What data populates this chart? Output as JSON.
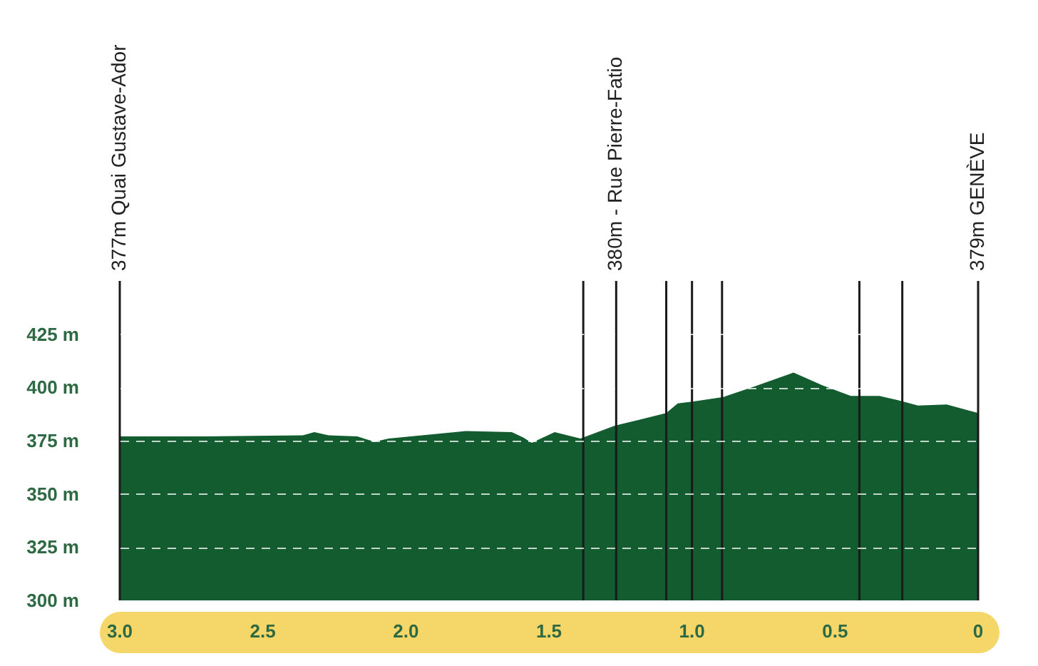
{
  "chart_data": {
    "type": "area",
    "x": [
      3.0,
      2.7,
      2.36,
      2.32,
      2.27,
      2.17,
      2.11,
      2.06,
      1.79,
      1.63,
      1.59,
      1.56,
      1.48,
      1.39,
      1.27,
      1.18,
      1.12,
      1.09,
      1.05,
      0.99,
      0.89,
      0.78,
      0.645,
      0.545,
      0.445,
      0.345,
      0.28,
      0.21,
      0.11,
      0.0
    ],
    "values": [
      377,
      377,
      377.5,
      379,
      377.5,
      377,
      374.5,
      376,
      379.5,
      379,
      376.5,
      374,
      379,
      376,
      382,
      385,
      387,
      388,
      392.5,
      393.5,
      395.5,
      400.5,
      407,
      401,
      396,
      396,
      394,
      391.5,
      392,
      388
    ],
    "color": "#125c2f",
    "xlim": [
      3.0,
      0
    ],
    "xticks": [
      {
        "value": 3.0,
        "label": "3.0"
      },
      2.5,
      {
        "value": 2.0,
        "label": "2.0"
      },
      1.5,
      {
        "value": 1.0,
        "label": "1.0"
      },
      0.5,
      0
    ],
    "ylim": [
      300,
      450
    ],
    "yticks": [
      {
        "value": 300,
        "label": "300 m"
      },
      {
        "value": 325,
        "label": "325 m"
      },
      {
        "value": 350,
        "label": "350 m"
      },
      {
        "value": 375,
        "label": "375 m"
      },
      {
        "value": 400,
        "label": "400 m"
      },
      {
        "value": 425,
        "label": "425 m"
      }
    ],
    "grid": "y",
    "ref_lines": [
      {
        "axis": "x",
        "value": 3.0,
        "label": "377m Quai Gustave-Ador",
        "color": "#1a1a1a"
      },
      {
        "axis": "x",
        "value": 1.38,
        "color": "#1a1a1a"
      },
      {
        "axis": "x",
        "value": 1.265,
        "label": "380m - Rue Pierre-Fatio",
        "color": "#1a1a1a"
      },
      {
        "axis": "x",
        "value": 1.09,
        "color": "#1a1a1a"
      },
      {
        "axis": "x",
        "value": 1.0,
        "color": "#1a1a1a"
      },
      {
        "axis": "x",
        "value": 0.895,
        "color": "#1a1a1a"
      },
      {
        "axis": "x",
        "value": 0.415,
        "color": "#1a1a1a"
      },
      {
        "axis": "x",
        "value": 0.265,
        "color": "#1a1a1a"
      },
      {
        "axis": "x",
        "value": 0,
        "label": "379m GENÈVE",
        "color": "#1a1a1a"
      }
    ]
  }
}
